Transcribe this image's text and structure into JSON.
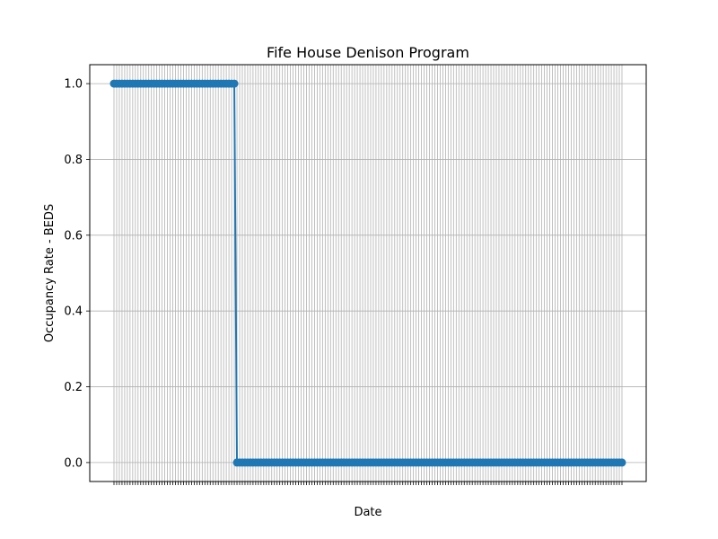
{
  "chart_data": {
    "type": "line",
    "title": "Fife House Denison Program",
    "xlabel": "Date",
    "ylabel": "Occupancy Rate - BEDS",
    "ylim": [
      -0.05,
      1.05
    ],
    "yticks": [
      0.0,
      0.2,
      0.4,
      0.6,
      0.8,
      1.0
    ],
    "ytick_labels": [
      "0.0",
      "0.2",
      "0.4",
      "0.6",
      "0.8",
      "1.0"
    ],
    "grid": true,
    "marker": "circle",
    "legend": "none",
    "series_color": "#1f77b4",
    "grid_color": "#b0b0b0",
    "point_count": 191,
    "high_point_count": 46,
    "high_value": 1.0,
    "low_value": 0.0,
    "x_tick_labels": "overlapping, unreadable"
  }
}
